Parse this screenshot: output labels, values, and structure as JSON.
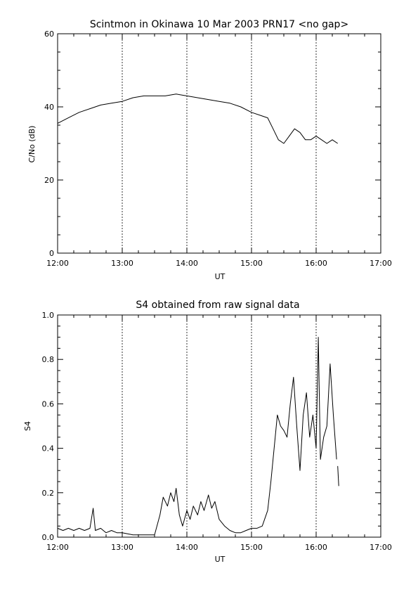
{
  "chart_data": [
    {
      "type": "line",
      "title": "Scintmon in Okinawa 10 Mar 2003 PRN17 <no gap>",
      "xlabel": "UT",
      "ylabel": "C/No (dB)",
      "xlim": [
        "12:00",
        "17:00"
      ],
      "ylim": [
        0,
        60
      ],
      "x_ticks": [
        "12:00",
        "13:00",
        "14:00",
        "15:00",
        "16:00",
        "17:00"
      ],
      "y_ticks": [
        "0",
        "20",
        "40",
        "60"
      ],
      "vertical_dashed_lines_at": [
        "13:00",
        "14:00",
        "15:00",
        "16:00"
      ],
      "series": [
        {
          "x": [
            "12:00",
            "12:10",
            "12:20",
            "12:30",
            "12:40",
            "12:50",
            "13:00",
            "13:10",
            "13:20",
            "13:30",
            "13:40",
            "13:50",
            "14:00",
            "14:10",
            "14:20",
            "14:30",
            "14:40",
            "14:50",
            "15:00",
            "15:10",
            "15:15",
            "15:20",
            "15:25",
            "15:30",
            "15:35",
            "15:40",
            "15:45",
            "15:50",
            "15:55",
            "16:00",
            "16:05",
            "16:10",
            "16:15",
            "16:20"
          ],
          "values": [
            35.5,
            37,
            38.5,
            39.5,
            40.5,
            41,
            41.5,
            42.5,
            43,
            43,
            43,
            43.5,
            43,
            42.5,
            42,
            41.5,
            41,
            40,
            38.5,
            37.5,
            37,
            34,
            31,
            30,
            32,
            34,
            33,
            31,
            31,
            32,
            31,
            30,
            31,
            30
          ]
        }
      ]
    },
    {
      "type": "line",
      "title": "S4 obtained from raw signal data",
      "xlabel": "UT",
      "ylabel": "S4",
      "xlim": [
        "12:00",
        "17:00"
      ],
      "ylim": [
        0,
        1.0
      ],
      "x_ticks": [
        "12:00",
        "13:00",
        "14:00",
        "15:00",
        "16:00",
        "17:00"
      ],
      "y_ticks": [
        "0.0",
        "0.2",
        "0.4",
        "0.6",
        "0.8",
        "1.0"
      ],
      "vertical_dashed_lines_at": [
        "13:00",
        "14:00",
        "15:00",
        "16:00"
      ],
      "series": [
        {
          "x": [
            "12:00",
            "12:05",
            "12:10",
            "12:15",
            "12:20",
            "12:25",
            "12:30",
            "12:33",
            "12:35",
            "12:40",
            "12:45",
            "12:50",
            "12:55",
            "13:00",
            "13:10",
            "13:20",
            "13:30",
            "13:35",
            "13:38",
            "13:42",
            "13:45",
            "13:48",
            "13:50",
            "13:53",
            "13:56",
            "14:00",
            "14:03",
            "14:06",
            "14:10",
            "14:13",
            "14:16",
            "14:20",
            "14:23",
            "14:26",
            "14:30",
            "14:35",
            "14:40",
            "14:45",
            "14:50",
            "14:55",
            "15:00",
            "15:05",
            "15:10",
            "15:15",
            "15:18",
            "15:21",
            "15:24",
            "15:27",
            "15:30",
            "15:33",
            "15:36",
            "15:39",
            "15:42",
            "15:45",
            "15:48",
            "15:51",
            "15:54",
            "15:57",
            "16:00",
            "16:02",
            "16:04",
            "16:07",
            "16:10",
            "16:13",
            "16:16",
            "16:19"
          ],
          "values": [
            0.04,
            0.03,
            0.04,
            0.03,
            0.04,
            0.03,
            0.04,
            0.13,
            0.03,
            0.04,
            0.02,
            0.03,
            0.02,
            0.02,
            0.01,
            0.01,
            0.01,
            0.1,
            0.18,
            0.14,
            0.2,
            0.16,
            0.22,
            0.1,
            0.05,
            0.12,
            0.08,
            0.14,
            0.1,
            0.16,
            0.12,
            0.19,
            0.13,
            0.16,
            0.08,
            0.05,
            0.03,
            0.02,
            0.02,
            0.03,
            0.04,
            0.04,
            0.05,
            0.12,
            0.25,
            0.4,
            0.55,
            0.5,
            0.48,
            0.45,
            0.6,
            0.72,
            0.5,
            0.3,
            0.55,
            0.65,
            0.45,
            0.55,
            0.4,
            0.9,
            0.35,
            0.45,
            0.5,
            0.78,
            0.55,
            0.35
          ]
        },
        {
          "x": [
            "16:20",
            "16:21"
          ],
          "values": [
            0.32,
            0.23
          ]
        }
      ]
    }
  ]
}
